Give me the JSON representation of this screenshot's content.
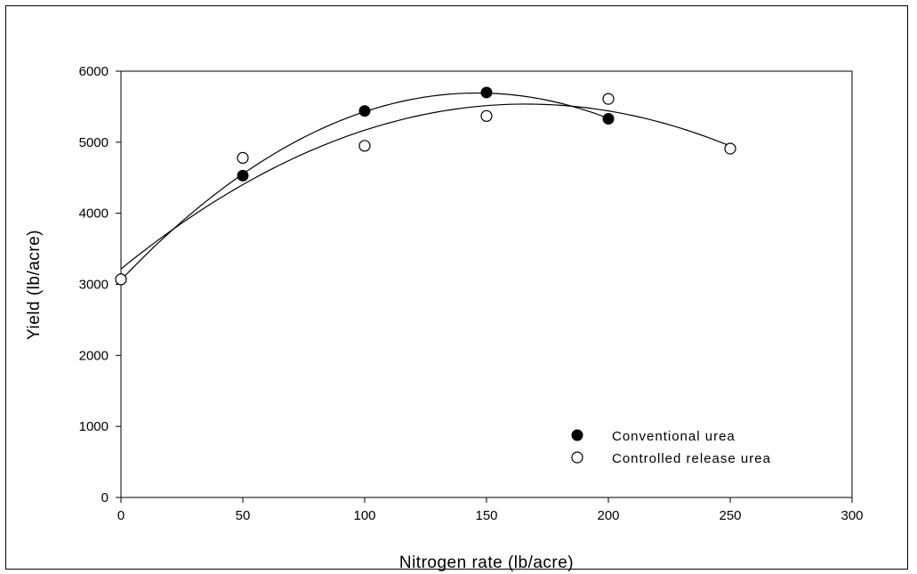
{
  "chart_data": {
    "type": "scatter",
    "title": "",
    "xlabel": "Nitrogen rate (lb/acre)",
    "ylabel": "Yield (lb/acre)",
    "xlim": [
      0,
      300
    ],
    "ylim": [
      0,
      6000
    ],
    "xticks": [
      "0",
      "50",
      "100",
      "150",
      "200",
      "250",
      "300"
    ],
    "yticks": [
      "0",
      "1000",
      "2000",
      "3000",
      "4000",
      "5000",
      "6000"
    ],
    "grid": false,
    "legend_position": "bottom-right",
    "series": [
      {
        "name": "Conventional urea",
        "marker": "filled-circle",
        "color": "#000000",
        "x": [
          0,
          50,
          100,
          150,
          200
        ],
        "y": [
          3070,
          4530,
          5440,
          5700,
          5330
        ],
        "fit": "quadratic"
      },
      {
        "name": "Controlled release urea",
        "marker": "open-circle",
        "color": "#000000",
        "x": [
          0,
          50,
          100,
          150,
          200,
          250
        ],
        "y": [
          3070,
          4780,
          4950,
          5370,
          5610,
          4910
        ],
        "fit": "quadratic"
      }
    ]
  }
}
